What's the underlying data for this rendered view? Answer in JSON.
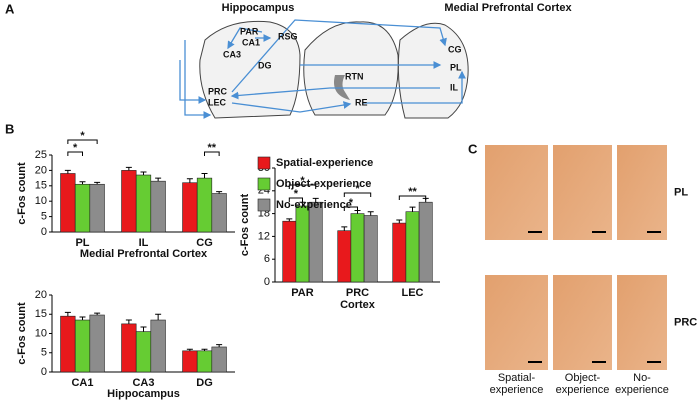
{
  "panel_a": {
    "label": "A",
    "titles": [
      "Hippocampus",
      "Medial Prefrontal Cortex"
    ],
    "regions": [
      "PAR",
      "CA1",
      "RSG",
      "CA3",
      "DG",
      "PRC",
      "LEC",
      "RTN",
      "RE",
      "CG",
      "PL",
      "IL"
    ]
  },
  "panel_b": {
    "label": "B"
  },
  "chart_data": [
    {
      "type": "bar",
      "categories": [
        "PL",
        "IL",
        "CG"
      ],
      "xlabel": "Medial Prefrontal Cortex",
      "ylabel": "c-Fos count",
      "ylim": [
        0,
        25
      ],
      "yticks": [
        0,
        5,
        10,
        15,
        20,
        25
      ],
      "series": [
        {
          "name": "Spatial-experience",
          "color": "#e8191c",
          "values": [
            19,
            20,
            16
          ],
          "errors": [
            1,
            1,
            1.3
          ]
        },
        {
          "name": "Object-experience",
          "color": "#66cc33",
          "values": [
            15.5,
            18.5,
            17.5
          ],
          "errors": [
            0.8,
            1,
            1.5
          ]
        },
        {
          "name": "No-experience",
          "color": "#8c8c8c",
          "values": [
            15.5,
            16.5,
            12.5
          ],
          "errors": [
            0.6,
            1,
            0.6
          ]
        }
      ],
      "annotations": [
        "*",
        "*",
        "**"
      ]
    },
    {
      "type": "bar",
      "categories": [
        "CA1",
        "CA3",
        "DG"
      ],
      "xlabel": "Hippocampus",
      "ylabel": "c-Fos count",
      "ylim": [
        0,
        20
      ],
      "yticks": [
        0,
        5,
        10,
        15,
        20
      ],
      "series": [
        {
          "color": "#e8191c",
          "values": [
            14.5,
            12.5,
            5.5
          ],
          "errors": [
            1,
            1,
            0.4
          ]
        },
        {
          "color": "#66cc33",
          "values": [
            13.5,
            10.5,
            5.5
          ],
          "errors": [
            0.8,
            1.2,
            0.4
          ]
        },
        {
          "color": "#8c8c8c",
          "values": [
            14.8,
            13.5,
            6.5
          ],
          "errors": [
            0.5,
            1.5,
            0.6
          ]
        }
      ],
      "annotations": []
    },
    {
      "type": "bar",
      "categories": [
        "PAR",
        "PRC",
        "LEC"
      ],
      "xlabel": "Cortex",
      "ylabel": "c-Fos count",
      "ylim": [
        0,
        30
      ],
      "yticks": [
        0,
        6,
        12,
        18,
        24,
        30
      ],
      "series": [
        {
          "color": "#e8191c",
          "values": [
            16,
            13.5,
            15.5
          ],
          "errors": [
            0.6,
            1,
            0.8
          ]
        },
        {
          "color": "#66cc33",
          "values": [
            20,
            18,
            18.5
          ],
          "errors": [
            1,
            0.8,
            1.2
          ]
        },
        {
          "color": "#8c8c8c",
          "values": [
            21,
            17.5,
            21
          ],
          "errors": [
            1,
            1,
            1
          ]
        }
      ],
      "annotations": [
        "*",
        "*",
        "*",
        "*",
        "**"
      ]
    }
  ],
  "panel_c": {
    "label": "C",
    "rows": [
      "PL",
      "PRC"
    ],
    "columns": [
      [
        "Spatial-",
        "experience"
      ],
      [
        "Object-",
        "experience"
      ],
      [
        "No-",
        "experience"
      ]
    ]
  }
}
